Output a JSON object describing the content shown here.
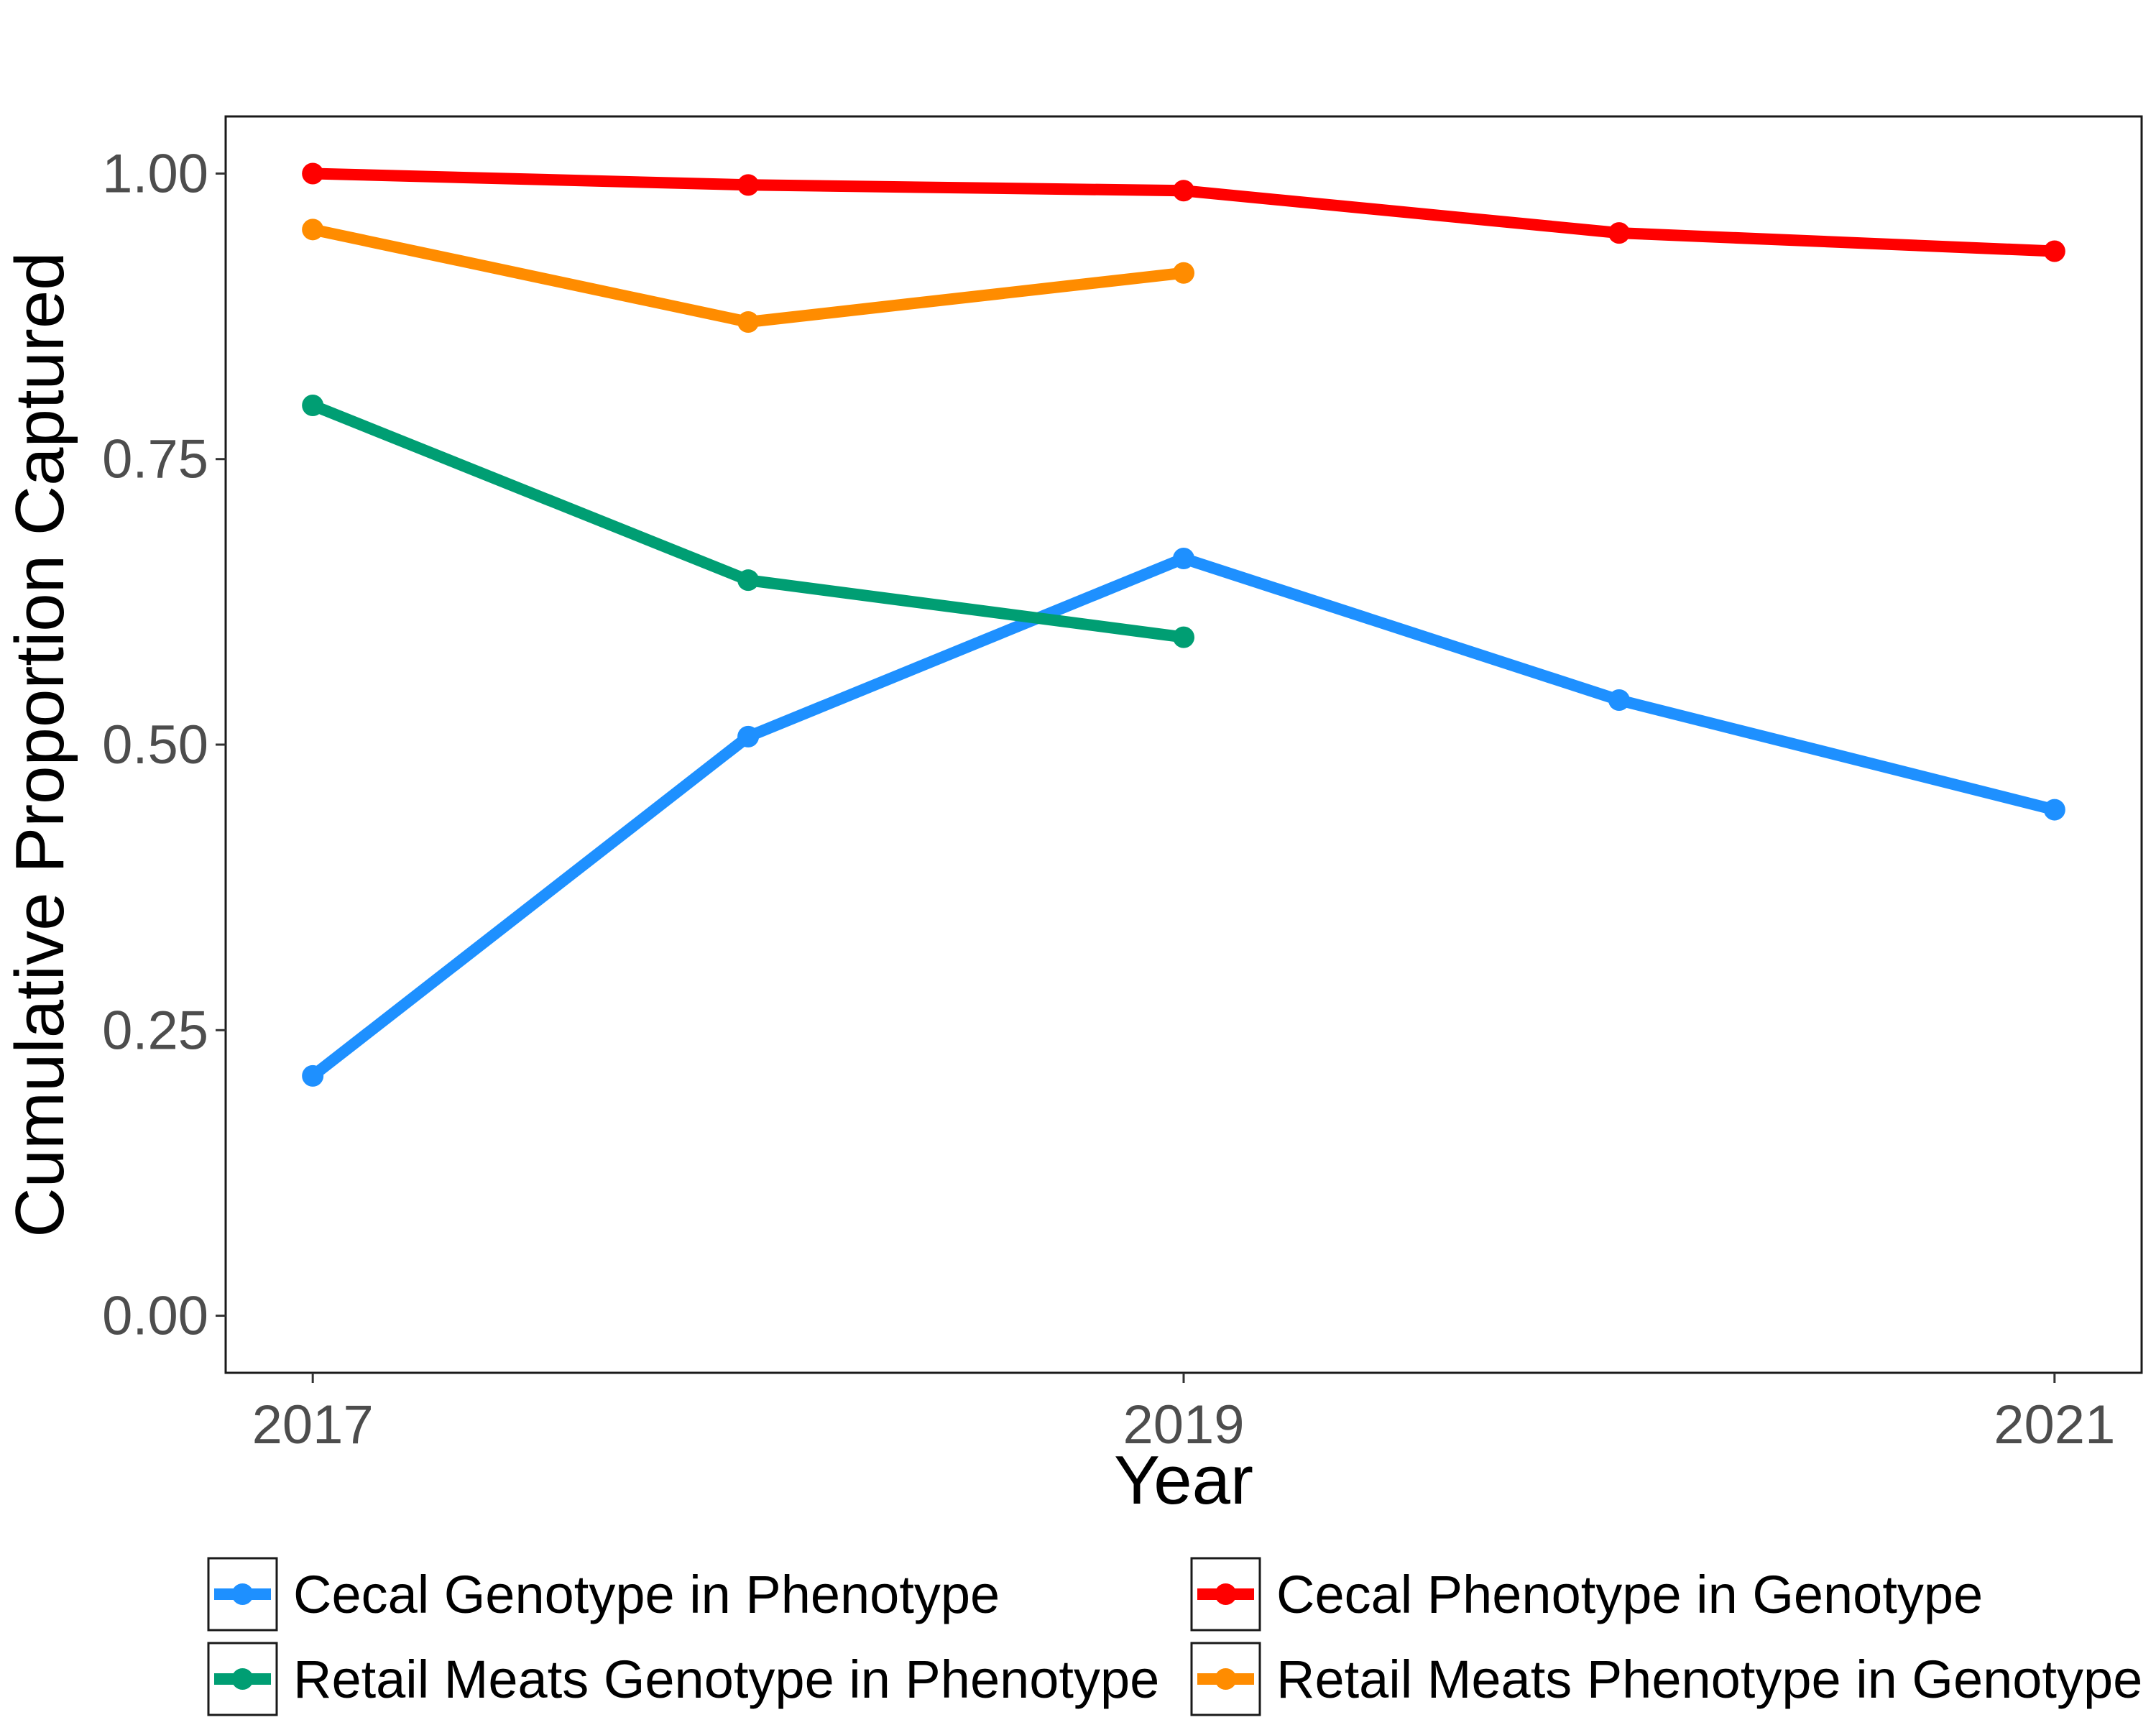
{
  "chart_data": {
    "type": "line",
    "title": "",
    "xlabel": "Year",
    "ylabel": "Cumulative Proportion Captured",
    "x": [
      2017,
      2018,
      2019,
      2020,
      2021
    ],
    "x_ticks": [
      2017,
      2019,
      2021
    ],
    "x_tick_labels": [
      "2017",
      "2019",
      "2021"
    ],
    "y_ticks": [
      0,
      0.25,
      0.5,
      0.75,
      1.0
    ],
    "y_tick_labels": [
      "0.00",
      "0.25",
      "0.50",
      "0.75",
      "1.00"
    ],
    "xlim": [
      2016.8,
      2021.2
    ],
    "ylim": [
      -0.05,
      1.05
    ],
    "grid": false,
    "legend_position": "bottom",
    "series": [
      {
        "name": "Cecal Genotype in Phenotype",
        "color": "#1e90ff",
        "x": [
          2017,
          2018,
          2019,
          2020,
          2021
        ],
        "values": [
          0.21,
          0.507,
          0.663,
          0.539,
          0.443
        ]
      },
      {
        "name": "Cecal Phenotype in Genotype",
        "color": "#ff0000",
        "x": [
          2017,
          2018,
          2019,
          2020,
          2021
        ],
        "values": [
          1.0,
          0.99,
          0.985,
          0.948,
          0.932
        ]
      },
      {
        "name": "Retail Meats Genotype in Phenotype",
        "color": "#009e73",
        "x": [
          2017,
          2018,
          2019
        ],
        "values": [
          0.797,
          0.644,
          0.594
        ]
      },
      {
        "name": "Retail Meats Phenotype in Genotype",
        "color": "#ff8c00",
        "x": [
          2017,
          2018,
          2019
        ],
        "values": [
          0.951,
          0.87,
          0.913
        ]
      }
    ]
  }
}
